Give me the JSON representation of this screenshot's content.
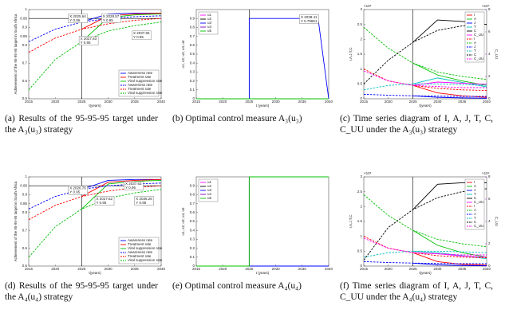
{
  "chart_data": [
    {
      "type": "line",
      "xlabel": "t(years)",
      "ylabel": "Achievement of the 95-95-95 target in South Africa",
      "x": [
        2015,
        2020,
        2025,
        2030,
        2035,
        2040
      ],
      "xlim": [
        2015,
        2040
      ],
      "xticks": [
        2015,
        2020,
        2025,
        2030,
        2035,
        2040
      ],
      "ylim": [
        0.5,
        1
      ],
      "yticks": [
        0.5,
        0.6,
        0.7,
        0.8,
        0.85,
        0.9,
        0.95,
        1
      ],
      "hline": 0.95,
      "vline": 2025,
      "legend": "lower right",
      "series": [
        {
          "name": "Awareness rate",
          "color": "#0000ff",
          "dash": false,
          "values": [
            null,
            null,
            0.93,
            0.975,
            0.98,
            0.98
          ]
        },
        {
          "name": "Treatment rate",
          "color": "#ff0000",
          "dash": false,
          "values": [
            null,
            null,
            0.89,
            0.965,
            0.975,
            0.98
          ]
        },
        {
          "name": "Viral suppression rate",
          "color": "#00c000",
          "dash": false,
          "values": [
            null,
            null,
            0.82,
            0.955,
            0.97,
            0.975
          ]
        },
        {
          "name": "Awareness rate",
          "color": "#0000ff",
          "dash": true,
          "values": [
            0.82,
            0.89,
            0.93,
            0.95,
            0.96,
            0.965
          ]
        },
        {
          "name": "Treatment rate",
          "color": "#ff0000",
          "dash": true,
          "values": [
            0.76,
            0.84,
            0.89,
            0.92,
            0.94,
            0.95
          ]
        },
        {
          "name": "Viral suppression rate",
          "color": "#00c000",
          "dash": true,
          "values": [
            0.55,
            0.72,
            0.82,
            0.88,
            0.91,
            0.93
          ]
        }
      ],
      "annotations": [
        [
          "X 2025.64",
          "Y 0.96"
        ],
        [
          "X 2028.57",
          "Y 0.95"
        ],
        [
          "X 2027.63",
          "Y 0.95"
        ],
        [
          "X 2037.65",
          "Y 0.95"
        ]
      ]
    },
    {
      "type": "line",
      "xlabel": "t (years)",
      "ylabel": "u1, u2, u3, u4, u5",
      "x": [
        2015,
        2025,
        2025,
        2038,
        2040
      ],
      "xlim": [
        2015,
        2040
      ],
      "xticks": [
        2015,
        2020,
        2025,
        2030,
        2035,
        2040
      ],
      "ylim": [
        0,
        1
      ],
      "yticks": [
        0,
        0.1,
        0.2,
        0.3,
        0.4,
        0.5,
        0.6,
        0.7,
        0.8,
        0.9
      ],
      "vline": 2025,
      "legend": "upper left",
      "series": [
        {
          "name": "u1",
          "color": "#ff00ff",
          "dash": false,
          "values": [
            0,
            0,
            0,
            0,
            0
          ]
        },
        {
          "name": "u2",
          "color": "#000000",
          "dash": false,
          "values": [
            0,
            0,
            0,
            0,
            0
          ]
        },
        {
          "name": "u3",
          "color": "#0000ff",
          "dash": false,
          "values": [
            0,
            0,
            0.9,
            0.9,
            0
          ]
        },
        {
          "name": "u4",
          "color": "#8000c0",
          "dash": false,
          "values": [
            0,
            0,
            0,
            0,
            0
          ]
        },
        {
          "name": "u5",
          "color": "#00c000",
          "dash": false,
          "values": [
            0,
            0,
            0,
            0,
            0
          ]
        }
      ],
      "annotations": [
        [
          "X 2038.41",
          "Y 0.79861"
        ]
      ]
    },
    {
      "type": "line",
      "xlabel": "t(years)",
      "ylabel": "I,A,J,T,C",
      "y2label": "C_UU",
      "y_exponent": "×10⁶",
      "y2_exponent": "×10⁴",
      "x": [
        2015,
        2020,
        2025,
        2030,
        2035,
        2040
      ],
      "xlim": [
        2015,
        2040
      ],
      "xticks": [
        2015,
        2020,
        2025,
        2030,
        2035,
        2040
      ],
      "ylim": [
        0,
        3
      ],
      "yticks": [
        0,
        0.5,
        1,
        1.5,
        2,
        2.5,
        3
      ],
      "y2lim": [
        0,
        8
      ],
      "y2ticks": [
        0,
        2,
        4,
        6,
        8
      ],
      "vline": 2025,
      "legend": "upper right",
      "series": [
        {
          "name": "I",
          "color": "#ff0000",
          "dash": false,
          "values": [
            null,
            null,
            0.45,
            0.2,
            0.1,
            0.05
          ]
        },
        {
          "name": "A",
          "color": "#00c000",
          "dash": false,
          "values": [
            null,
            null,
            1.2,
            0.8,
            0.6,
            0.45
          ]
        },
        {
          "name": "J",
          "color": "#0000ff",
          "dash": false,
          "values": [
            null,
            null,
            0.1,
            0.05,
            0.03,
            0.02
          ]
        },
        {
          "name": "T",
          "color": "#00c0c0",
          "dash": false,
          "values": [
            null,
            null,
            0.5,
            0.7,
            0.55,
            0.4
          ]
        },
        {
          "name": "C",
          "color": "#000000",
          "dash": false,
          "values": [
            null,
            null,
            1.9,
            2.65,
            2.6,
            2.5
          ]
        },
        {
          "name": "C_UU",
          "color": "#ff00ff",
          "dash": false,
          "axis": "y2",
          "values": [
            null,
            null,
            1.2,
            1.5,
            1.4,
            1.3
          ]
        },
        {
          "name": "I",
          "color": "#ff0000",
          "dash": true,
          "values": [
            1.0,
            0.6,
            0.45,
            0.35,
            0.3,
            0.28
          ]
        },
        {
          "name": "A",
          "color": "#00c000",
          "dash": true,
          "values": [
            2.4,
            1.7,
            1.2,
            0.9,
            0.75,
            0.65
          ]
        },
        {
          "name": "J",
          "color": "#0000ff",
          "dash": true,
          "values": [
            0.15,
            0.12,
            0.1,
            0.09,
            0.08,
            0.08
          ]
        },
        {
          "name": "T",
          "color": "#00c0c0",
          "dash": true,
          "values": [
            0.3,
            0.45,
            0.5,
            0.5,
            0.48,
            0.45
          ]
        },
        {
          "name": "C",
          "color": "#000000",
          "dash": true,
          "values": [
            0.5,
            1.3,
            1.9,
            2.3,
            2.45,
            2.5
          ]
        },
        {
          "name": "C_UU",
          "color": "#ff00ff",
          "dash": true,
          "axis": "y2",
          "values": [
            2.5,
            1.6,
            1.2,
            1.1,
            1.0,
            1.0
          ]
        }
      ]
    },
    {
      "type": "line",
      "xlabel": "t(years)",
      "ylabel": "Achievement of the 95-95-95 target in South Africa",
      "x": [
        2015,
        2020,
        2025,
        2030,
        2035,
        2040
      ],
      "xlim": [
        2015,
        2040
      ],
      "xticks": [
        2015,
        2020,
        2025,
        2030,
        2035,
        2040
      ],
      "ylim": [
        0.5,
        1
      ],
      "yticks": [
        0.5,
        0.6,
        0.7,
        0.8,
        0.85,
        0.9,
        0.95,
        1
      ],
      "hline": 0.95,
      "vline": 2025,
      "legend": "lower right",
      "series": [
        {
          "name": "Awareness rate",
          "color": "#0000ff",
          "dash": false,
          "values": [
            null,
            null,
            0.93,
            0.98,
            0.985,
            0.985
          ]
        },
        {
          "name": "Treatment rate",
          "color": "#ff0000",
          "dash": false,
          "values": [
            null,
            null,
            0.89,
            0.97,
            0.98,
            0.985
          ]
        },
        {
          "name": "Viral suppression rate",
          "color": "#00c000",
          "dash": false,
          "values": [
            null,
            null,
            0.82,
            0.96,
            0.975,
            0.98
          ]
        },
        {
          "name": "Awareness rate",
          "color": "#0000ff",
          "dash": true,
          "values": [
            0.82,
            0.89,
            0.93,
            0.95,
            0.96,
            0.965
          ]
        },
        {
          "name": "Treatment rate",
          "color": "#ff0000",
          "dash": true,
          "values": [
            0.76,
            0.84,
            0.89,
            0.92,
            0.94,
            0.95
          ]
        },
        {
          "name": "Viral suppression rate",
          "color": "#00c000",
          "dash": true,
          "values": [
            0.55,
            0.72,
            0.82,
            0.88,
            0.91,
            0.93
          ]
        }
      ],
      "annotations": [
        [
          "X 2026.76",
          "Y 0.95"
        ],
        [
          "X 2037.63",
          "Y 0.95"
        ],
        [
          "X 2027.62",
          "Y 0.95"
        ],
        [
          "X 2035.26",
          "Y 0.95"
        ]
      ]
    },
    {
      "type": "line",
      "xlabel": "t (years)",
      "ylabel": "u1, u2, u3, u4, u5",
      "x": [
        2015,
        2025,
        2025,
        2040
      ],
      "xlim": [
        2015,
        2040
      ],
      "xticks": [
        2015,
        2020,
        2025,
        2030,
        2035,
        2040
      ],
      "ylim": [
        0,
        1
      ],
      "yticks": [
        0,
        0.1,
        0.2,
        0.3,
        0.4,
        0.5,
        0.6,
        0.7,
        0.8,
        0.9
      ],
      "vline": 2025,
      "legend": "upper left",
      "series": [
        {
          "name": "u1",
          "color": "#ff00ff",
          "dash": false,
          "values": [
            0,
            0,
            0,
            0
          ]
        },
        {
          "name": "u2",
          "color": "#000000",
          "dash": false,
          "values": [
            0,
            0,
            0,
            0
          ]
        },
        {
          "name": "u3",
          "color": "#0000ff",
          "dash": false,
          "values": [
            0,
            0,
            0,
            0
          ]
        },
        {
          "name": "u4",
          "color": "#8000c0",
          "dash": false,
          "values": [
            0,
            0,
            1,
            1
          ]
        },
        {
          "name": "u5",
          "color": "#00c000",
          "dash": false,
          "values": [
            0,
            0,
            1,
            1
          ]
        }
      ]
    },
    {
      "type": "line",
      "xlabel": "t(years)",
      "ylabel": "I,A,J,T,C",
      "y2label": "C_UU",
      "y_exponent": "×10⁶",
      "y2_exponent": "×10⁴",
      "x": [
        2015,
        2020,
        2025,
        2030,
        2035,
        2040
      ],
      "xlim": [
        2015,
        2040
      ],
      "xticks": [
        2015,
        2020,
        2025,
        2030,
        2035,
        2040
      ],
      "ylim": [
        0,
        3
      ],
      "yticks": [
        0,
        0.5,
        1,
        1.5,
        2,
        2.5,
        3
      ],
      "y2lim": [
        0,
        8
      ],
      "y2ticks": [
        0,
        2,
        4,
        6,
        8
      ],
      "vline": 2025,
      "legend": "upper right",
      "series": [
        {
          "name": "I",
          "color": "#ff0000",
          "dash": false,
          "values": [
            null,
            null,
            0.45,
            0.15,
            0.06,
            0.03
          ]
        },
        {
          "name": "A",
          "color": "#00c000",
          "dash": false,
          "values": [
            null,
            null,
            1.2,
            0.7,
            0.45,
            0.3
          ]
        },
        {
          "name": "J",
          "color": "#0000ff",
          "dash": false,
          "values": [
            null,
            null,
            0.1,
            0.04,
            0.02,
            0.01
          ]
        },
        {
          "name": "T",
          "color": "#00c0c0",
          "dash": false,
          "values": [
            null,
            null,
            0.5,
            0.45,
            0.35,
            0.25
          ]
        },
        {
          "name": "C",
          "color": "#000000",
          "dash": false,
          "values": [
            null,
            null,
            1.9,
            2.75,
            2.8,
            2.8
          ]
        },
        {
          "name": "C_UU",
          "color": "#ff00ff",
          "dash": false,
          "axis": "y2",
          "values": [
            null,
            null,
            1.2,
            1.1,
            0.9,
            0.8
          ]
        },
        {
          "name": "I",
          "color": "#ff0000",
          "dash": true,
          "values": [
            1.0,
            0.6,
            0.45,
            0.35,
            0.3,
            0.28
          ]
        },
        {
          "name": "A",
          "color": "#00c000",
          "dash": true,
          "values": [
            2.4,
            1.7,
            1.2,
            0.9,
            0.75,
            0.65
          ]
        },
        {
          "name": "J",
          "color": "#0000ff",
          "dash": true,
          "values": [
            0.15,
            0.12,
            0.1,
            0.09,
            0.08,
            0.08
          ]
        },
        {
          "name": "T",
          "color": "#00c0c0",
          "dash": true,
          "values": [
            0.3,
            0.45,
            0.5,
            0.5,
            0.48,
            0.45
          ]
        },
        {
          "name": "C",
          "color": "#000000",
          "dash": true,
          "values": [
            0.2,
            1.3,
            1.9,
            2.3,
            2.5,
            2.6
          ]
        },
        {
          "name": "C_UU",
          "color": "#ff00ff",
          "dash": true,
          "axis": "y2",
          "values": [
            2.5,
            1.6,
            1.2,
            1.1,
            1.0,
            1.0
          ]
        }
      ]
    }
  ],
  "captions": [
    "(a) Results of the 95-95-95 target under the A₃(u₃) strategy",
    "(b) Optimal control measure A₃(u₃)",
    "(c) Time series diagram of I, A, J, T, C, C_UU under the A₃(u₃) strategy",
    "(d) Results of the 95-95-95 target under the A₄(u₄) strategy",
    "(e) Optimal control measure A₄(u₄)",
    "(f) Time series diagram of I, A, J, T, C, C_UU under the A₄(u₄) strategy"
  ]
}
